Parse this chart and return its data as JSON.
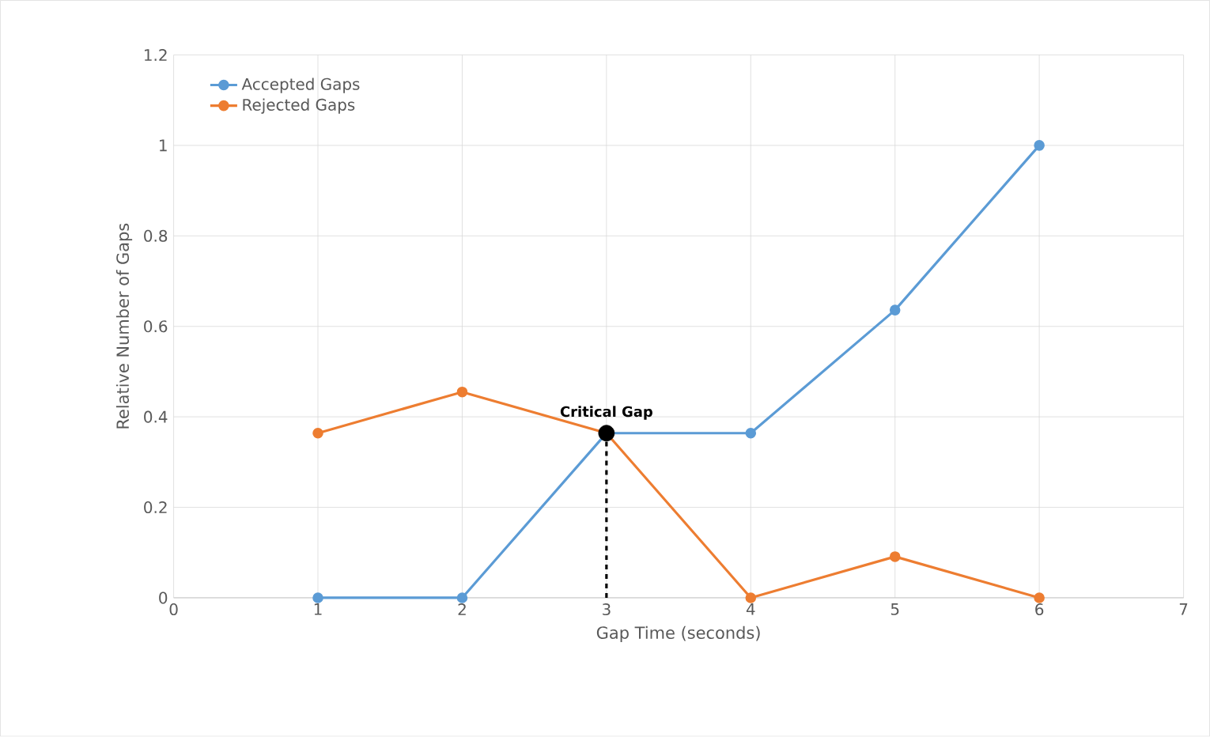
{
  "chart_data": {
    "type": "line",
    "xlabel": "Gap Time (seconds)",
    "ylabel": "Relative Number of Gaps",
    "xlim": [
      0,
      7
    ],
    "ylim": [
      0,
      1.2
    ],
    "xticks": [
      0,
      1,
      2,
      3,
      4,
      5,
      6,
      7
    ],
    "yticks": [
      0,
      0.2,
      0.4,
      0.6,
      0.8,
      1,
      1.2
    ],
    "grid": true,
    "legend": "top left",
    "marker": "circle",
    "series": [
      {
        "name": "Accepted Gaps",
        "color": "#5b9bd5",
        "x": [
          1,
          2,
          3,
          4,
          5,
          6
        ],
        "values": [
          0,
          0,
          0.364,
          0.364,
          0.636,
          1
        ]
      },
      {
        "name": "Rejected Gaps",
        "color": "#ed7d31",
        "x": [
          1,
          2,
          3,
          4,
          5,
          6
        ],
        "values": [
          0.364,
          0.455,
          0.364,
          0,
          0.091,
          0
        ]
      },
      {
        "type": "line",
        "color": "#000000",
        "x": [
          3,
          3
        ],
        "values": [
          0,
          0.364
        ],
        "marker": "none",
        "line_style": "dashed"
      },
      {
        "type": "scatter",
        "color": "#000000",
        "x": [
          3
        ],
        "values": [
          0.364
        ]
      }
    ],
    "annotations": [
      {
        "text": "Critical Gap",
        "x": 3,
        "y": 0.364
      }
    ]
  }
}
